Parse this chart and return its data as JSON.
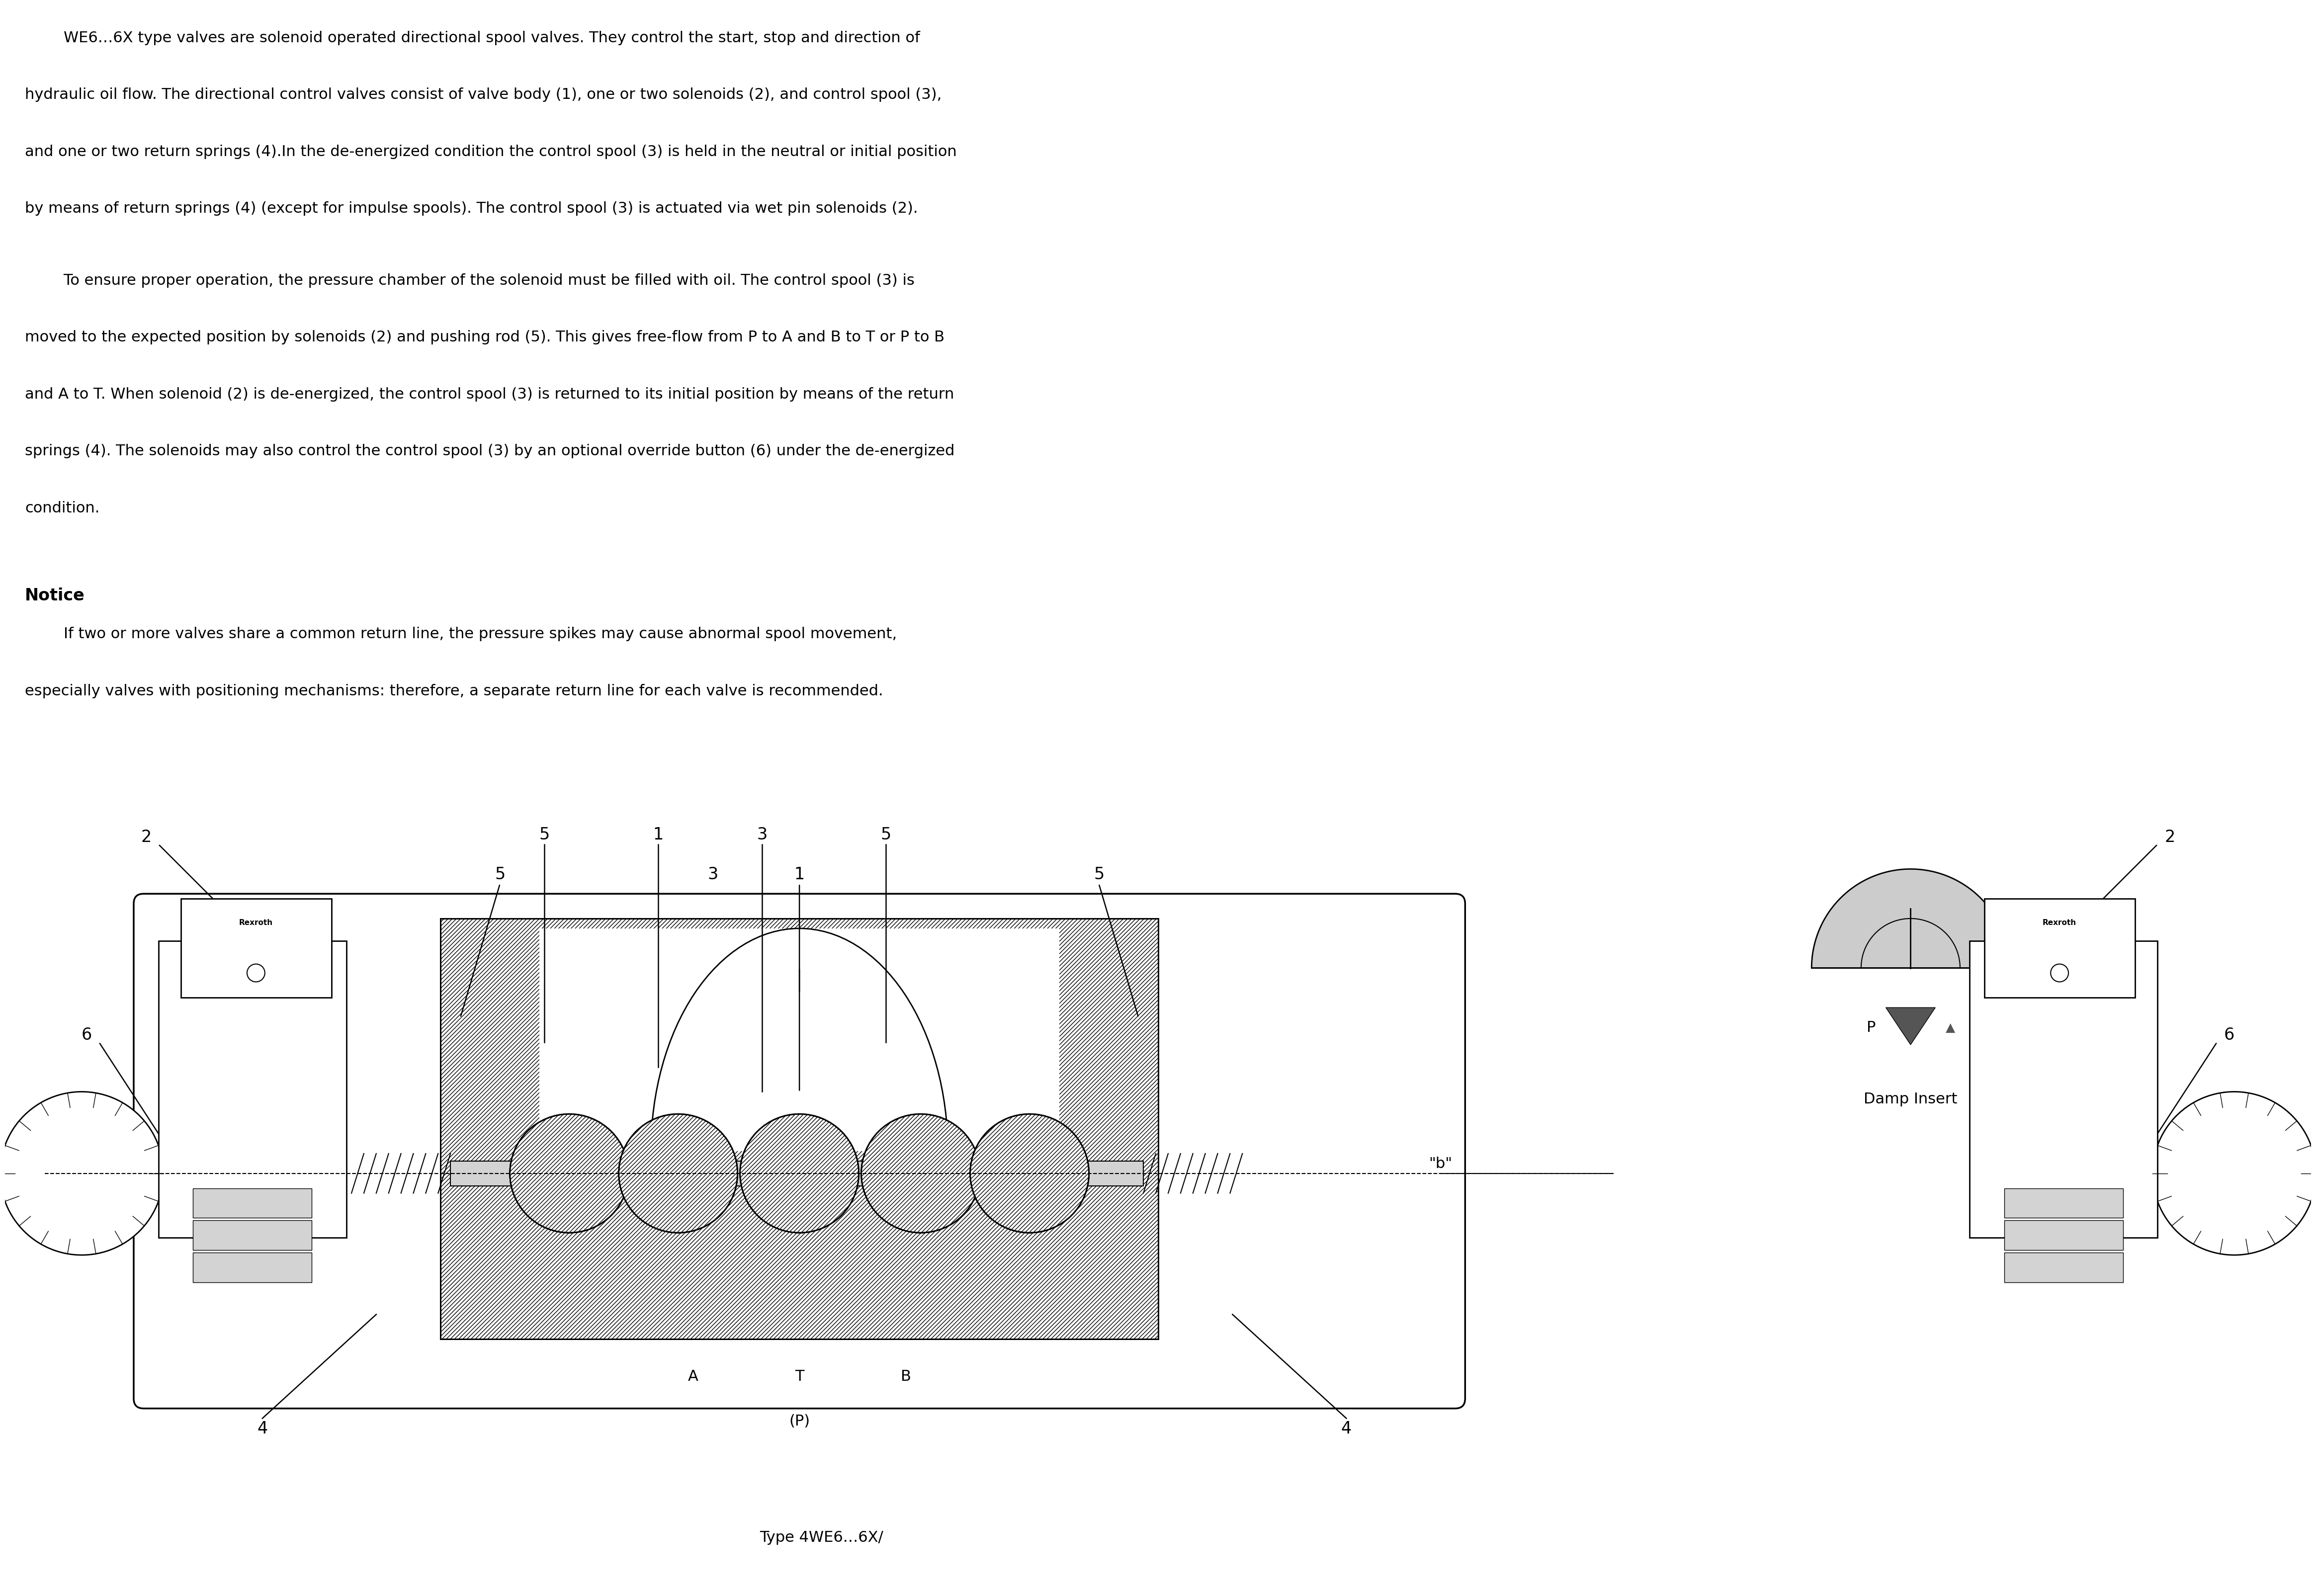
{
  "paragraph1_line1": "        WE6…6X type valves are solenoid operated directional spool valves. They control the start, stop and direction of",
  "paragraph1_line2": "hydraulic oil flow. The directional control valves consist of valve body (1), one or two solenoids (2), and control spool (3),",
  "paragraph1_line3": "and one or two return springs (4).In the de-energized condition the control spool (3) is held in the neutral or initial position",
  "paragraph1_line4": "by means of return springs (4) (except for impulse spools). The control spool (3) is actuated via wet pin solenoids (2).",
  "paragraph2_line1": "        To ensure proper operation, the pressure chamber of the solenoid must be filled with oil. The control spool (3) is",
  "paragraph2_line2": "moved to the expected position by solenoids (2) and pushing rod (5). This gives free-flow from P to A and B to T or P to B",
  "paragraph2_line3": "and A to T. When solenoid (2) is de-energized, the control spool (3) is returned to its initial position by means of the return",
  "paragraph2_line4": "springs (4). The solenoids may also control the control spool (3) by an optional override button (6) under the de-energized",
  "paragraph2_line5": "condition.",
  "notice_heading": "Notice",
  "notice_line1": "        If two or more valves share a common return line, the pressure spikes may cause abnormal spool movement,",
  "notice_line2": "especially valves with positioning mechanisms: therefore, a separate return line for each valve is recommended.",
  "type_label": "Type 4WE6…6X/",
  "damp_insert_label": "Damp Insert",
  "damp_p_label": "P",
  "bg_color": "#ffffff",
  "text_color": "#000000",
  "diagram_color": "#000000",
  "hatch_color": "#000000",
  "font_size_body": 22,
  "font_size_notice_heading": 24,
  "font_size_type": 20
}
